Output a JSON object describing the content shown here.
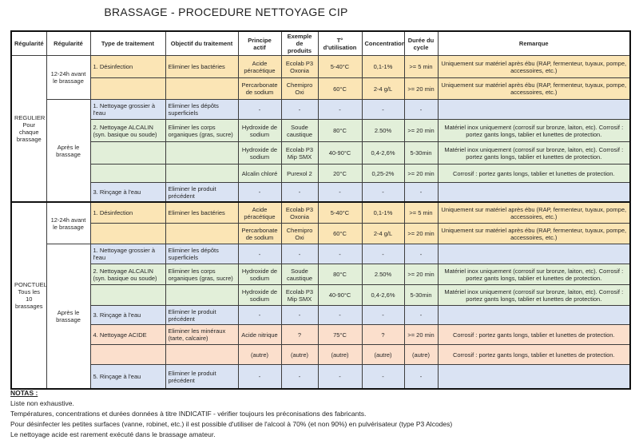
{
  "page": {
    "title": "BRASSAGE - PROCEDURE NETTOYAGE CIP"
  },
  "table": {
    "headers": [
      "Régularité",
      "Régularité",
      "Type de traitement",
      "Objectif du traitement",
      "Principe actif",
      "Exemple de produits",
      "T° d'utilisation",
      "Concentration",
      "Durée du cycle",
      "Remarque"
    ],
    "row_colors": {
      "yellow": "#FBE5B5",
      "blue": "#DAE3F3",
      "green": "#E2EFD9",
      "orange": "#FBDFCC"
    },
    "sections": [
      {
        "regularite": "REGULIER\nPour chaque brassage",
        "groups": [
          {
            "timing": "12-24h avant le brassage",
            "rows": [
              {
                "color": "yellow",
                "cells": [
                  "1. Désinfection",
                  "Eliminer les bactéries",
                  "Acide péracétique",
                  "Ecolab P3 Oxonia",
                  "5-40°C",
                  "0,1-1%",
                  ">= 5 min",
                  "Uniquement sur matériel après ébu (RAP, fermenteur, tuyaux, pompe, accessoires, etc.)"
                ]
              },
              {
                "color": "yellow",
                "cells": [
                  "",
                  "",
                  "Percarbonate de sodium",
                  "Chemipro Oxi",
                  "60°C",
                  "2-4 g/L",
                  ">= 20 min",
                  "Uniquement sur matériel après ébu (RAP, fermenteur, tuyaux, pompe, accessoires, etc.)"
                ]
              }
            ]
          },
          {
            "timing": "Après le brassage",
            "rows": [
              {
                "color": "blue",
                "cells": [
                  "1. Nettoyage grossier à l'eau",
                  "Eliminer les dépôts superficiels",
                  "-",
                  "-",
                  "-",
                  "-",
                  "-",
                  ""
                ]
              },
              {
                "color": "green",
                "cells": [
                  "2. Nettoyage ALCALIN (syn. basique ou soude)",
                  "Eliminer les corps organiques (gras, sucre)",
                  "Hydroxide de sodium",
                  "Soude caustique",
                  "80°C",
                  "2.50%",
                  ">= 20 min",
                  "Matériel inox uniquement (corrosif sur bronze, laiton, etc). Corrosif : portez gants longs, tablier et lunettes de protection."
                ]
              },
              {
                "color": "green",
                "cells": [
                  "",
                  "",
                  "Hydroxide de sodium",
                  "Ecolab P3 Mip SMX",
                  "40-90°C",
                  "0,4-2,6%",
                  "5-30min",
                  "Matériel inox uniquement (corrosif sur bronze, laiton, etc). Corrosif : portez gants longs, tablier et lunettes de protection."
                ]
              },
              {
                "color": "green",
                "cells": [
                  "",
                  "",
                  "Alcalin chloré",
                  "Purexol 2",
                  "20°C",
                  "0,25-2%",
                  ">= 20 min",
                  "Corrosif : portez gants longs, tablier et lunettes de protection."
                ]
              },
              {
                "color": "blue",
                "cells": [
                  "3. Rinçage à l'eau",
                  "Eliminer le produit précédent",
                  "-",
                  "-",
                  "-",
                  "-",
                  "-",
                  ""
                ]
              }
            ]
          }
        ]
      },
      {
        "regularite": "PONCTUEL\nTous les 10 brassages",
        "groups": [
          {
            "timing": "12-24h avant le brassage",
            "rows": [
              {
                "color": "yellow",
                "cells": [
                  "1. Désinfection",
                  "Eliminer les bactéries",
                  "Acide péracétique",
                  "Ecolab P3 Oxonia",
                  "5-40°C",
                  "0,1-1%",
                  ">= 5 min",
                  "Uniquement sur matériel après ébu (RAP, fermenteur, tuyaux, pompe, accessoires, etc.)"
                ]
              },
              {
                "color": "yellow",
                "cells": [
                  "",
                  "",
                  "Percarbonate de sodium",
                  "Chemipro Oxi",
                  "60°C",
                  "2-4 g/L",
                  ">= 20 min",
                  "Uniquement sur matériel après ébu (RAP, fermenteur, tuyaux, pompe, accessoires, etc.)"
                ]
              }
            ]
          },
          {
            "timing": "Après le brassage",
            "rows": [
              {
                "color": "blue",
                "cells": [
                  "1. Nettoyage grossier à l'eau",
                  "Eliminer les dépôts superficiels",
                  "-",
                  "-",
                  "-",
                  "-",
                  "-",
                  ""
                ]
              },
              {
                "color": "green",
                "cells": [
                  "2. Nettoyage ALCALIN (syn. basique ou soude)",
                  "Eliminer les corps organiques (gras, sucre)",
                  "Hydroxide de sodium",
                  "Soude caustique",
                  "80°C",
                  "2.50%",
                  ">= 20 min",
                  "Matériel inox uniquement (corrosif sur bronze, laiton, etc). Corrosif : portez gants longs, tablier et lunettes de protection."
                ]
              },
              {
                "color": "green",
                "cells": [
                  "",
                  "",
                  "Hydroxide de sodium",
                  "Ecolab P3 Mip SMX",
                  "40-90°C",
                  "0,4-2,6%",
                  "5-30min",
                  "Matériel inox uniquement (corrosif sur bronze, laiton, etc). Corrosif : portez gants longs, tablier et lunettes de protection."
                ]
              },
              {
                "color": "blue",
                "cells": [
                  "3. Rinçage à l'eau",
                  "Eliminer le produit précédent",
                  "-",
                  "-",
                  "-",
                  "-",
                  "-",
                  ""
                ]
              },
              {
                "color": "orange",
                "cells": [
                  "4. Nettoyage ACIDE",
                  "Eliminer les minéraux (tarte, calcaire)",
                  "Acide nitrique",
                  "?",
                  "75°C",
                  "?",
                  ">= 20 min",
                  "Corrosif : portez gants longs, tablier et lunettes de protection."
                ]
              },
              {
                "color": "orange",
                "cells": [
                  "",
                  "",
                  "(autre)",
                  "(autre)",
                  "(autre)",
                  "(autre)",
                  "(autre)",
                  "Corrosif : portez gants longs, tablier et lunettes de protection."
                ]
              },
              {
                "color": "blue",
                "cells": [
                  "5. Rinçage à l'eau",
                  "Eliminer le produit précédent",
                  "-",
                  "-",
                  "-",
                  "-",
                  "-",
                  ""
                ]
              }
            ]
          }
        ]
      }
    ]
  },
  "notes": {
    "heading": "NOTAS :",
    "lines": [
      "Liste non exhaustive.",
      "Températures, concentrations et durées données à titre INDICATIF - vérifier toujours les préconisations des fabricants.",
      "Pour désinfecter les petites surfaces (vanne, robinet, etc.) il est possible d'utiliser de l'alcool à 70% (et non 90%) en pulvérisateur (type P3 Alcodes)",
      "Le nettoyage acide est rarement exécuté dans le brassage amateur."
    ]
  }
}
